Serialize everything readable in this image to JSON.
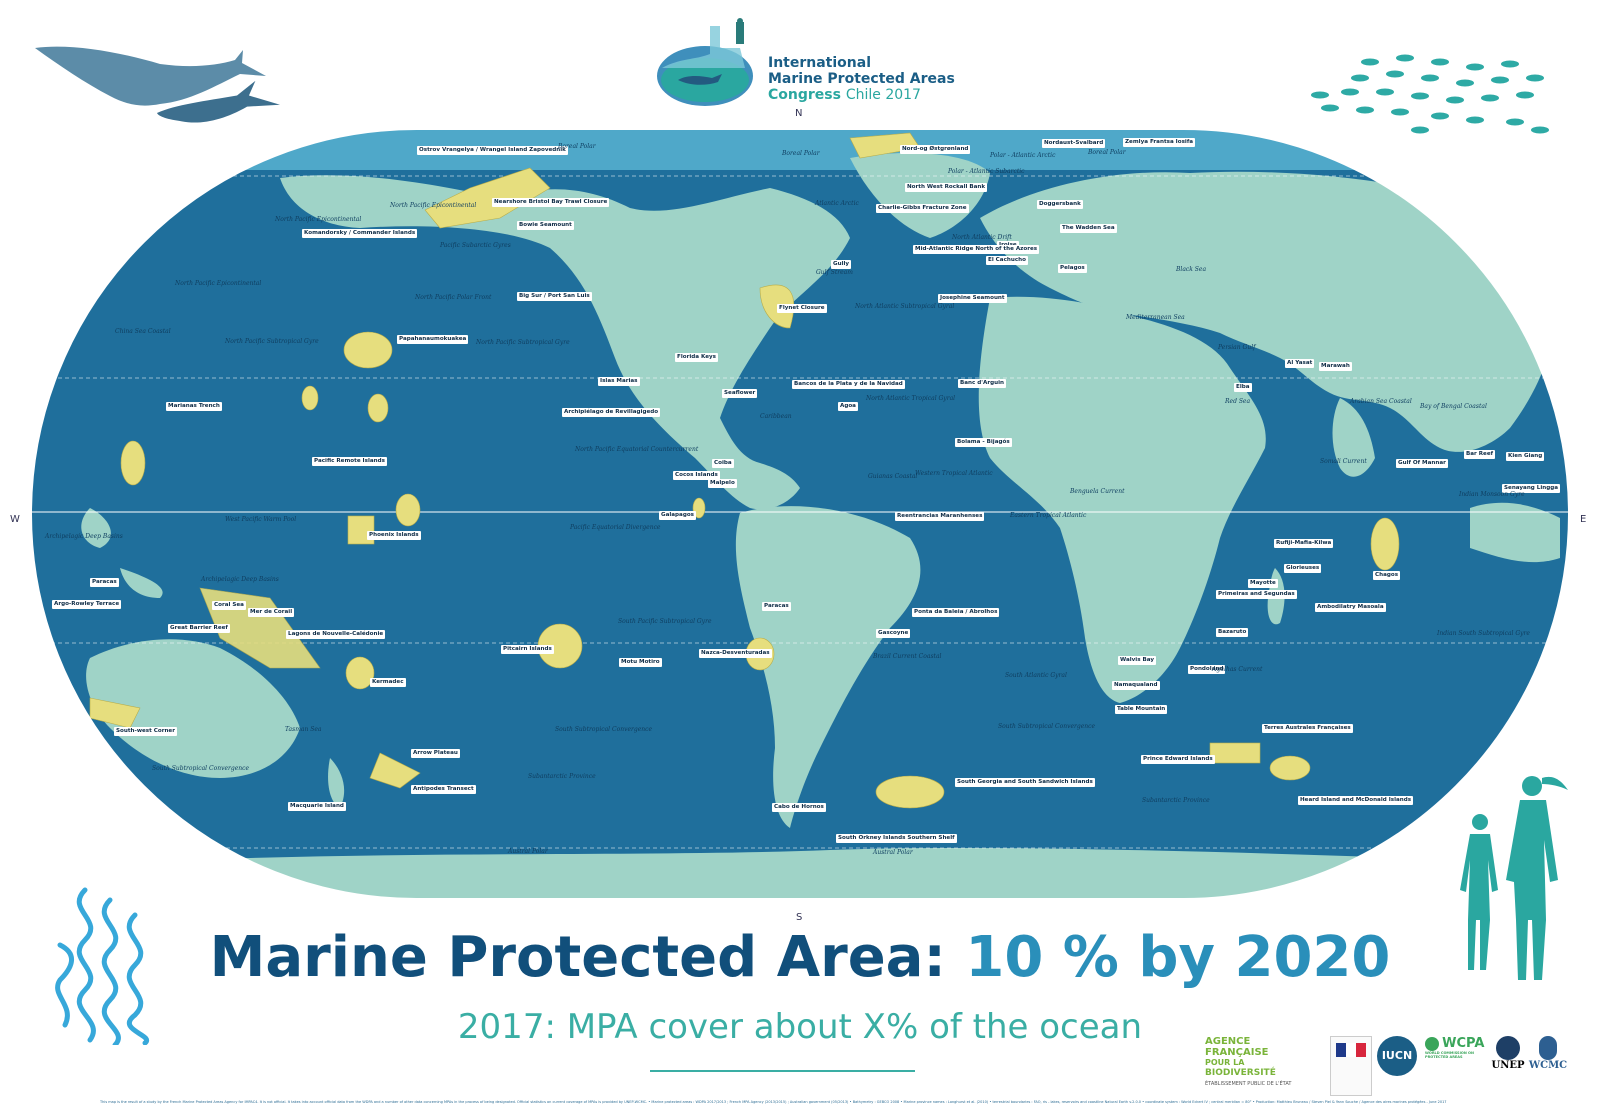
{
  "congress": {
    "line1": "International",
    "line2": "Marine Protected Areas",
    "line3a": "Congress",
    "line3b": "Chile 2017"
  },
  "compass": {
    "n": "N",
    "s": "S",
    "e": "E",
    "w": "W"
  },
  "title": {
    "main": "Marine Protected Area:",
    "accent": "10 % by 2020"
  },
  "subtitle": "2017: MPA cover about X% of the ocean",
  "mpa_labels": [
    "Ostrov Vrangelya / Wrangel Island Zapovednik",
    "Nearshore Bristol Bay Trawl Closure",
    "Bowie Seamount",
    "Komandorsky / Commander Islands",
    "Big Sur / Port San Luis",
    "Papahanaumokuakea",
    "Marianas Trench",
    "Islas Marias",
    "Archipiélago de Revillagigedo",
    "Pacific Remote Islands",
    "Phoenix Islands",
    "Cocos Islands",
    "Coiba",
    "Malpelo",
    "Galapagos",
    "Florida Keys",
    "Seaflower",
    "Bancos de la Plata y de la Navidad",
    "Agoa",
    "Gully",
    "Flynet Closure",
    "Charlie-Gibbs Fracture Zone",
    "North West Rockall Bank",
    "Nord-og Østgrønland",
    "Nordaust-Svalbard",
    "Zemlya Frantsa Iosifa",
    "Doggersbank",
    "The Wadden Sea",
    "Iroise",
    "El Cachucho",
    "Mid-Atlantic Ridge North of the Azores",
    "Josephine Seamount",
    "Pelagos",
    "Banc d'Arguin",
    "Bolama - Bijagós",
    "Reentrancias Maranhenses",
    "Ponta da Baleia / Abrolhos",
    "Gascoyne",
    "Paracas",
    "Paracas",
    "Pitcairn Islands",
    "Motu Motiro",
    "Nazca-Desventuradas",
    "Argo-Rowley Terrace",
    "Coral Sea",
    "Mer de Corail",
    "Great Barrier Reef",
    "Lagons de Nouvelle-Calédonie",
    "Kermadec",
    "South-west Corner",
    "Arrow Plateau",
    "Antipodes Transect",
    "Macquarie Island",
    "Cabo de Hornos",
    "South Georgia and South Sandwich Islands",
    "South Orkney Islands Southern Shelf",
    "Walvis Bay",
    "Namaqualand",
    "Table Mountain",
    "Pondoland",
    "Prince Edward Islands",
    "Bazaruto",
    "Primeiras and Segundas",
    "Mayotte",
    "Glorieuses",
    "Rufiji-Mafia-Kilwa",
    "Ambodilatry Masoala",
    "Chagos",
    "Al Yasat",
    "Marawah",
    "Elba",
    "Gulf Of Mannar",
    "Bar Reef",
    "Kien Giang",
    "Senayang Lingga",
    "Terres Australes Françaises",
    "Heard Island and McDonald Islands"
  ],
  "ocean_labels": [
    "Boreal Polar",
    "Boreal Polar",
    "Boreal Polar",
    "Polar - Atlantic Arctic",
    "Polar - Atlantic Subarctic",
    "North Pacific Epicontinental",
    "North Pacific Epicontinental",
    "Pacific Subarctic Gyres",
    "North Pacific Epicontinental",
    "North Pacific Polar Front",
    "China Sea Coastal",
    "North Pacific Subtropical Gyre",
    "North Pacific Subtropical Gyre",
    "Atlantic Arctic",
    "North Atlantic Drift",
    "Gulf Stream",
    "North Atlantic Subtropical Gyral",
    "Mediterranean Sea",
    "Black Sea",
    "Persian Gulf",
    "Caribbean",
    "North Atlantic Tropical Gyral",
    "Western Tropical Atlantic",
    "Guianas Coastal",
    "North Pacific Equatorial Countercurrent",
    "Eastern Tropical Atlantic",
    "West Pacific Warm Pool",
    "Archipelagic Deep Basins",
    "Pacific Equatorial Divergence",
    "Archipelagic Deep Basins",
    "Indian Monsoon Gyre",
    "South Pacific Subtropical Gyre",
    "South Atlantic Gyral",
    "Indian South Subtropical Gyre",
    "Tasman Sea",
    "South Subtropical Convergence",
    "South Subtropical Convergence",
    "Subantarctic Province",
    "Subantarctic Province",
    "Austral Polar",
    "Austral Polar",
    "South Subtropical Convergence",
    "Somali Current",
    "Agulhas Current",
    "Benguela Current",
    "Brazil Current Coastal",
    "Red Sea",
    "Arabian Sea Coastal",
    "Bay of Bengal Coastal"
  ],
  "partners": {
    "afb1": "AGENCE FRANÇAISE",
    "afb2": "POUR LA",
    "afb3": "BIODIVERSITÉ",
    "afb4": "ÉTABLISSEMENT PUBLIC DE L'ÉTAT",
    "iucn": "IUCN",
    "wcpa": "WCPA",
    "wcpa_sub": "WORLD COMMISSION ON PROTECTED AREAS",
    "unep": "UNEP",
    "wcmc": "WCMC"
  },
  "footnote": "This map is the result of a study by the French Marine Protected Areas Agency for IMPAC4. It is not official. It takes into account official data from the WDPA and a number of other data concerning MPAs in the process of being designated. Official statistics on current coverage of MPAs is provided by UNEP-WCMC. • Marine protected areas : WDPA 2017/2013 ; French MPA Agency (2013/2015) ; Australian government (05/2013) • Bathymetry : GEBCO 2008 • Marine province names : Longhurst et al. (2010) • terrestrial boundaries : FAO, ris - lakes, reservoirs and coastline Natural Earth v.2.0.0 • coordinate system : World Eckert IV ; central meridian = 80° • Production: Matthieu Bruneau / Steven Piel & Yann Souche / Agence des aires marines protégées - June 2017",
  "colors": {
    "ocean_deep": "#1f6f9c",
    "ocean_shelf": "#63b8d3",
    "land": "#9fd3c7",
    "mpa": "#e6de7e",
    "title": "#114f7b",
    "title_accent": "#2a8fba",
    "subtitle": "#3aaea4"
  }
}
